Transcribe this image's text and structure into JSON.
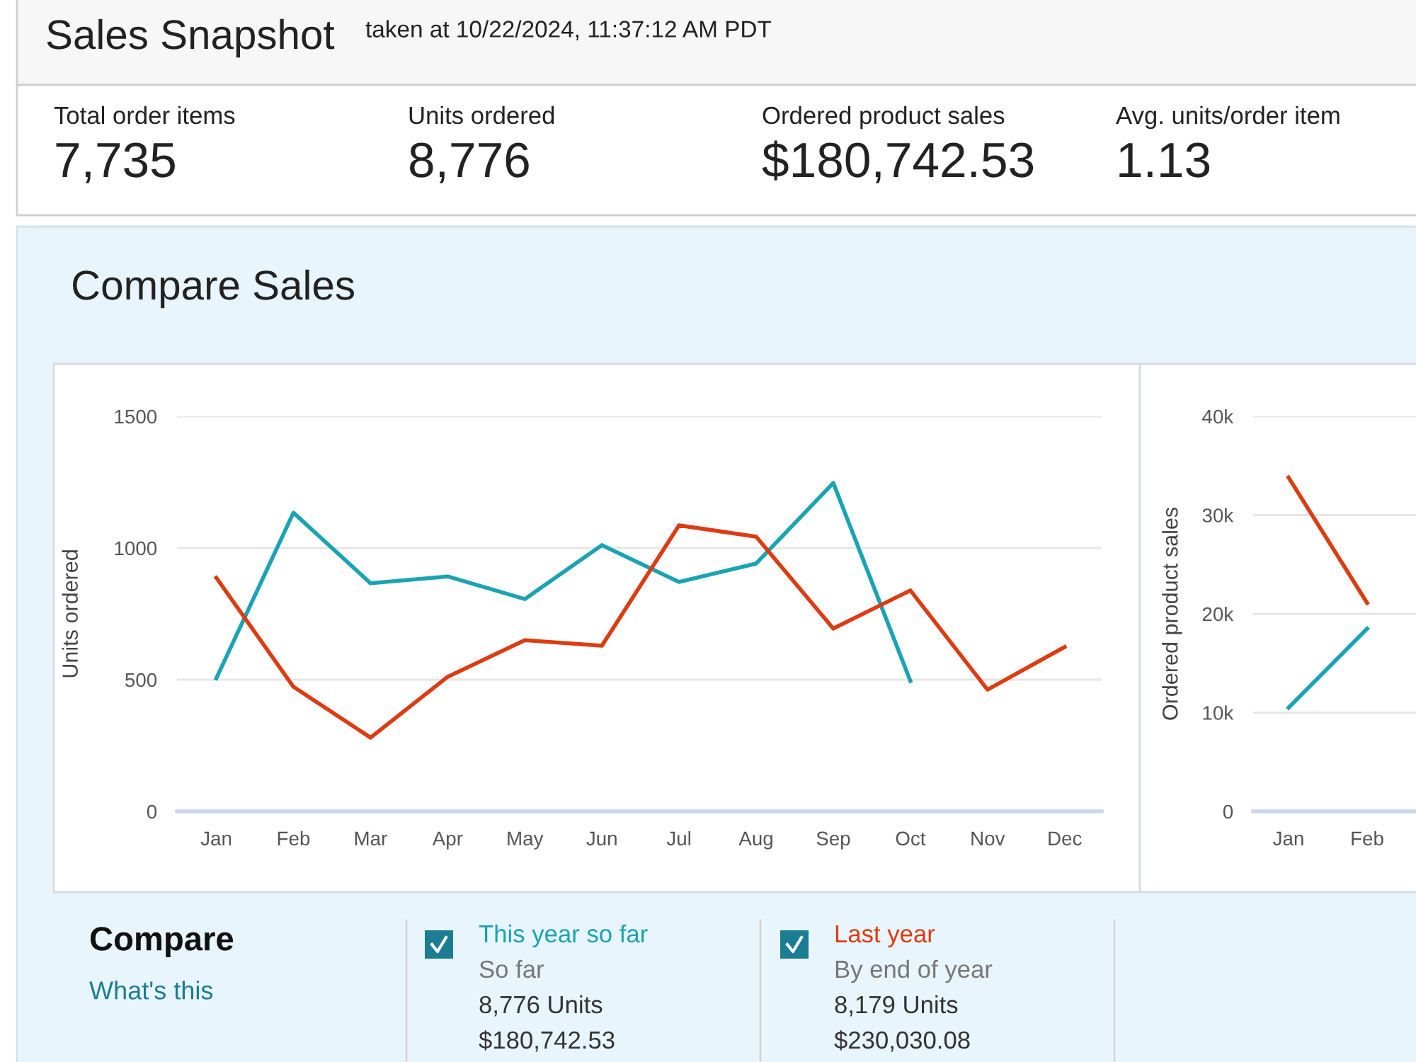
{
  "chart_data": [
    {
      "type": "other",
      "title": "Sales Snapshot",
      "subtitle": "taken at 10/22/2024, 11:37:12 AM PDT",
      "annotations": [
        "Total order items",
        "7,735",
        "Units ordered",
        "8,776",
        "Ordered product sales",
        "$180,742.53",
        "Avg. units/order item",
        "1.13"
      ]
    },
    {
      "type": "line",
      "title": "Compare Sales",
      "ylabel": "Units ordered",
      "categories": [
        "Jan",
        "Feb",
        "Mar",
        "Apr",
        "May",
        "Jun",
        "Jul",
        "Aug",
        "Sep",
        "Oct",
        "Nov",
        "Dec"
      ],
      "series": [
        {
          "name": "This year so far",
          "color": "#1aa3b3",
          "values": [
            505,
            1134,
            866,
            892,
            806,
            1011,
            871,
            941,
            1247,
            495,
            null,
            null
          ]
        },
        {
          "name": "Last year",
          "color": "#dd3b11",
          "values": [
            887,
            473,
            280,
            511,
            650,
            629,
            1086,
            1043,
            694,
            839,
            462,
            624
          ]
        }
      ],
      "ylim": [
        0,
        1500
      ],
      "yticks": [
        0,
        500,
        1000,
        1500
      ],
      "grid": "y",
      "legend": "bottom",
      "marker": "none",
      "line_style": "solid",
      "annotations": [
        "Compare",
        "What's this",
        "So far",
        "8,776 Units",
        "$180,742.53",
        "By end of year",
        "8,179 Units",
        "$230,030.08"
      ]
    },
    {
      "type": "line",
      "ylabel": "Ordered product sales",
      "categories": [
        "Jan",
        "Feb"
      ],
      "series": [
        {
          "color": "#1aa3b3",
          "values": [
            10500,
            18500
          ]
        },
        {
          "color": "#dd3b11",
          "values": [
            33800,
            21100
          ]
        }
      ],
      "ylim": [
        0,
        40000
      ],
      "yticks": [
        0,
        {
          "value": 10000,
          "label": "10k"
        },
        {
          "value": 20000,
          "label": "20k"
        },
        {
          "value": 30000,
          "label": "30k"
        },
        {
          "value": 40000,
          "label": "40k"
        }
      ],
      "grid": "y",
      "marker": "none",
      "line_style": "solid"
    }
  ]
}
